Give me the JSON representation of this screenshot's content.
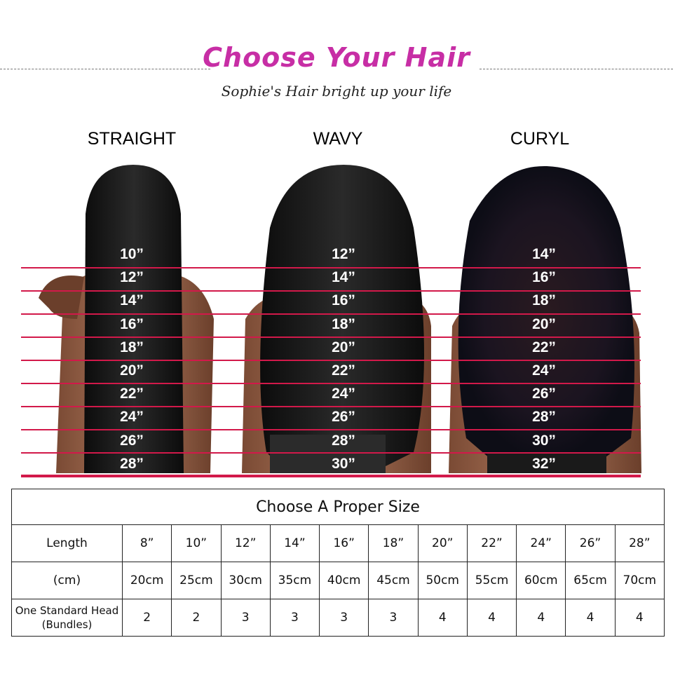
{
  "header": {
    "title": "Choose Your Hair",
    "subtitle": "Sophie's Hair bright up your life"
  },
  "styles": [
    {
      "name": "STRAIGHT",
      "lengths": [
        "10”",
        "12”",
        "14”",
        "16”",
        "18”",
        "20”",
        "22”",
        "24”",
        "26”",
        "28”"
      ]
    },
    {
      "name": "WAVY",
      "lengths": [
        "12”",
        "14”",
        "16”",
        "18”",
        "20”",
        "22”",
        "24”",
        "26”",
        "28”",
        "30”"
      ]
    },
    {
      "name": "CURYL",
      "lengths": [
        "14”",
        "16”",
        "18”",
        "20”",
        "22”",
        "24”",
        "26”",
        "28”",
        "30”",
        "32”"
      ]
    }
  ],
  "colors": {
    "title": "#c72ea5",
    "measure_line": "#d2194a"
  },
  "table": {
    "title": "Choose A Proper Size",
    "rows": [
      {
        "label": "Length",
        "cells": [
          "8”",
          "10”",
          "12”",
          "14”",
          "16”",
          "18”",
          "20”",
          "22”",
          "24”",
          "26”",
          "28”"
        ]
      },
      {
        "label": "(cm)",
        "cells": [
          "20cm",
          "25cm",
          "30cm",
          "35cm",
          "40cm",
          "45cm",
          "50cm",
          "55cm",
          "60cm",
          "65cm",
          "70cm"
        ]
      },
      {
        "label": "One Standard Head (Bundles)",
        "cells": [
          "2",
          "2",
          "3",
          "3",
          "3",
          "3",
          "4",
          "4",
          "4",
          "4",
          "4"
        ]
      }
    ]
  }
}
